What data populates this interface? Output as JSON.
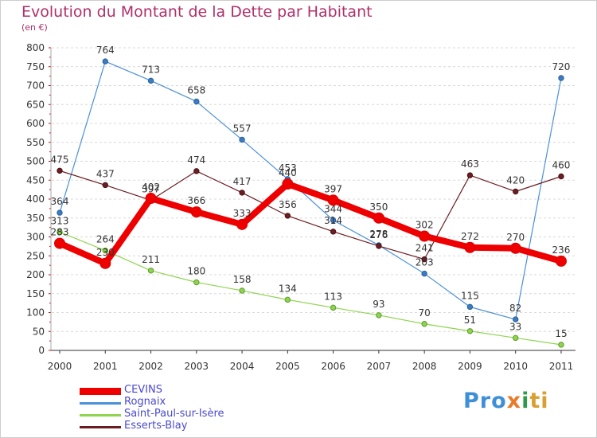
{
  "header": {
    "title": "Evolution du Montant de la Dette par Habitant",
    "subtitle": "(en €)"
  },
  "logo": {
    "text": "Proxiti"
  },
  "colors": {
    "CEVINS": "#ee0000",
    "Rognaix": "#4a90d9",
    "Saint-Paul-sur-Isère": "#8fd450",
    "Esserts-Blay": "#6b1d22",
    "title": "#b0306a",
    "legend_text": "#4a4ad0"
  },
  "chart_data": {
    "type": "line",
    "title": "Evolution du Montant de la Dette par Habitant",
    "subtitle": "(en €)",
    "xlabel": "",
    "ylabel": "",
    "x": [
      2000,
      2001,
      2002,
      2003,
      2004,
      2005,
      2006,
      2007,
      2008,
      2009,
      2010,
      2011
    ],
    "x_tick_labels": [
      "2000",
      "2001",
      "2002",
      "2003",
      "2004",
      "2005",
      "2006",
      "2007",
      "2008",
      "2009",
      "2010",
      "2011"
    ],
    "ylim": [
      0,
      800
    ],
    "y_ticks": [
      0,
      50,
      100,
      150,
      200,
      250,
      300,
      350,
      400,
      450,
      500,
      550,
      600,
      650,
      700,
      750,
      800
    ],
    "grid": "horizontal dashed",
    "legend_position": "bottom-left",
    "series": [
      {
        "name": "CEVINS",
        "values": [
          283,
          230,
          402,
          366,
          333,
          440,
          397,
          350,
          302,
          272,
          270,
          236
        ]
      },
      {
        "name": "Rognaix",
        "values": [
          364,
          764,
          713,
          658,
          557,
          453,
          344,
          278,
          203,
          115,
          82,
          720
        ]
      },
      {
        "name": "Saint-Paul-sur-Isère",
        "values": [
          313,
          264,
          211,
          180,
          158,
          134,
          113,
          93,
          70,
          51,
          33,
          15
        ]
      },
      {
        "name": "Esserts-Blay",
        "values": [
          475,
          437,
          397,
          474,
          417,
          356,
          314,
          276,
          241,
          463,
          420,
          460
        ]
      }
    ]
  }
}
